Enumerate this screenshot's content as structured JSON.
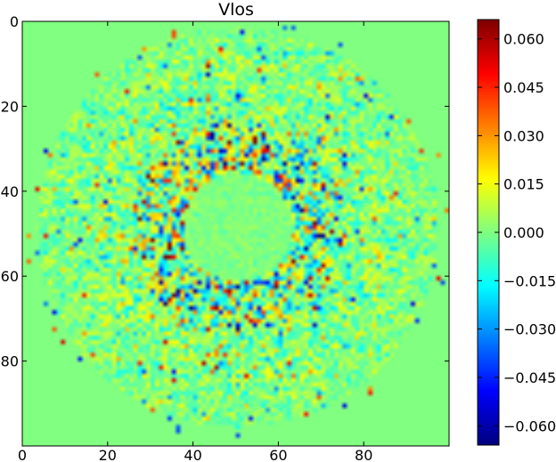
{
  "chart_data": {
    "type": "heatmap",
    "title": "Vlos",
    "xlabel": "",
    "ylabel": "",
    "grid_size": [
      100,
      100
    ],
    "x_range": [
      0,
      100
    ],
    "y_range": [
      0,
      100
    ],
    "y_inverted": true,
    "x_ticks": [
      0,
      20,
      40,
      60,
      80
    ],
    "y_ticks": [
      0,
      20,
      40,
      60,
      80
    ],
    "x_tick_labels": [
      "0",
      "20",
      "40",
      "60",
      "80"
    ],
    "y_tick_labels": [
      "0",
      "20",
      "40",
      "60",
      "80"
    ],
    "colormap": "jet",
    "colorbar": {
      "vmin": -0.066,
      "vmax": 0.066,
      "ticks": [
        -0.06,
        -0.045,
        -0.03,
        -0.015,
        0.0,
        0.015,
        0.03,
        0.045,
        0.06
      ],
      "tick_labels": [
        "−0.060",
        "−0.045",
        "−0.030",
        "−0.015",
        "0.000",
        "0.015",
        "0.030",
        "0.045",
        "0.060"
      ]
    },
    "approx_structure": {
      "center": [
        50,
        48
      ],
      "background_value": 0.0,
      "quiet_core_radius": 13,
      "strong_ring_radius": [
        14,
        25
      ],
      "noisy_disk_radius": 47
    }
  }
}
